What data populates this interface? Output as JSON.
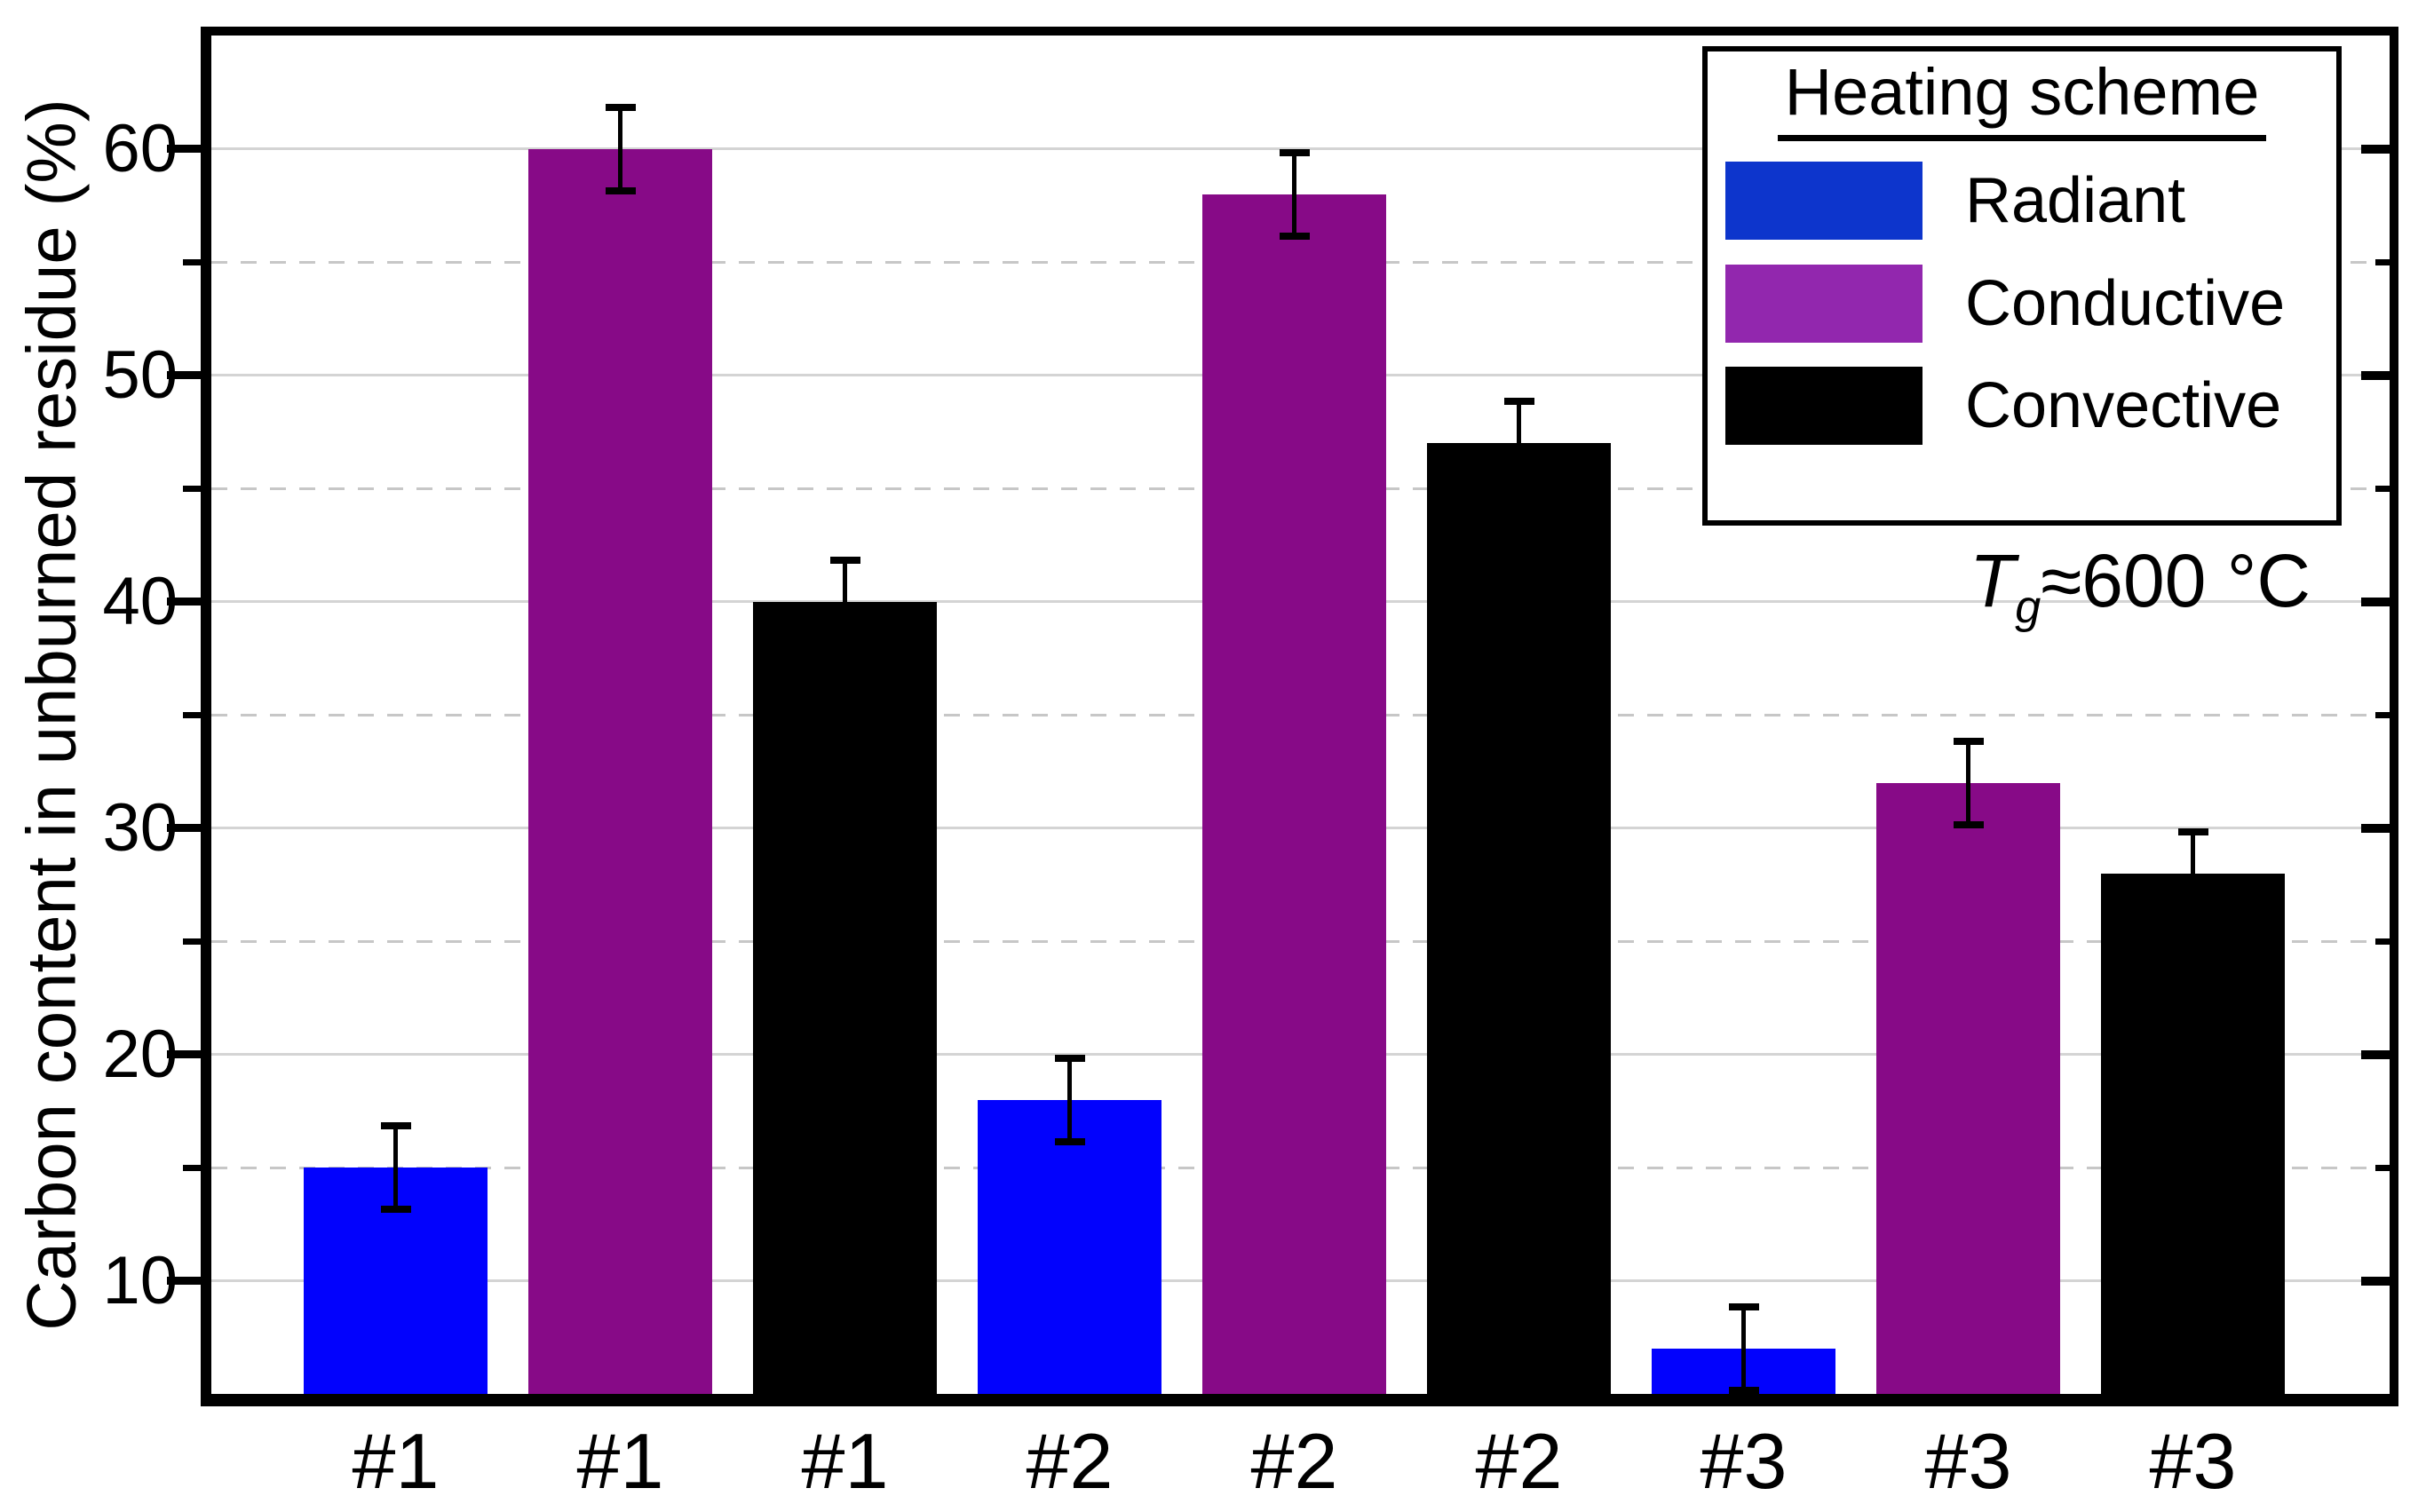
{
  "chart_data": {
    "type": "bar",
    "title": "",
    "xlabel": "",
    "ylabel": "Carbon content in unburned residue (%)",
    "ylim": [
      5,
      65
    ],
    "yticks": [
      10,
      20,
      30,
      40,
      50,
      60
    ],
    "yticks_minor": [
      15,
      25,
      35,
      45,
      55
    ],
    "grid": "major horizontal solid, minor horizontal dashed",
    "legend_position": "top-right",
    "legend_title": "Heating scheme",
    "categories": [
      "#1",
      "#2",
      "#3"
    ],
    "series": [
      {
        "name": "Radiant",
        "bar_color": "#0202fd",
        "legend_color": "#0d35cc",
        "values": [
          15,
          18,
          7
        ],
        "errors": [
          2,
          2,
          2
        ]
      },
      {
        "name": "Conductive",
        "bar_color": "#870a87",
        "legend_color": "#9227ae",
        "values": [
          60,
          58,
          32
        ],
        "errors": [
          2,
          2,
          2
        ]
      },
      {
        "name": "Convective",
        "bar_color": "#000000",
        "legend_color": "#000000",
        "values": [
          40,
          47,
          28
        ],
        "errors": [
          2,
          2,
          2
        ]
      }
    ],
    "bars": [
      {
        "label": "#1",
        "series": "Radiant",
        "value": 15,
        "error": 2
      },
      {
        "label": "#1",
        "series": "Conductive",
        "value": 60,
        "error": 2
      },
      {
        "label": "#1",
        "series": "Convective",
        "value": 40,
        "error": 2
      },
      {
        "label": "#2",
        "series": "Radiant",
        "value": 18,
        "error": 2
      },
      {
        "label": "#2",
        "series": "Conductive",
        "value": 58,
        "error": 2
      },
      {
        "label": "#2",
        "series": "Convective",
        "value": 47,
        "error": 2
      },
      {
        "label": "#3",
        "series": "Radiant",
        "value": 7,
        "error": 2
      },
      {
        "label": "#3",
        "series": "Conductive",
        "value": 32,
        "error": 2
      },
      {
        "label": "#3",
        "series": "Convective",
        "value": 28,
        "error": 2
      }
    ],
    "annotation": {
      "symbol": "T",
      "subscript": "g",
      "text": "≈600 °C"
    }
  }
}
